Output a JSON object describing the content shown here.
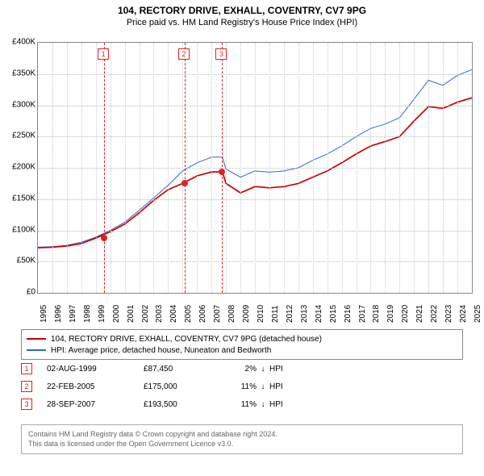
{
  "title": "104, RECTORY DRIVE, EXHALL, COVENTRY, CV7 9PG",
  "subtitle": "Price paid vs. HM Land Registry's House Price Index (HPI)",
  "chart": {
    "type": "line",
    "ylim": [
      0,
      400000
    ],
    "ytick_step": 50000,
    "yticks": [
      "£0",
      "£50K",
      "£100K",
      "£150K",
      "£200K",
      "£250K",
      "£300K",
      "£350K",
      "£400K"
    ],
    "xlim": [
      1995,
      2025
    ],
    "xticks": [
      "1995",
      "1996",
      "1997",
      "1998",
      "1999",
      "2000",
      "2001",
      "2002",
      "2003",
      "2004",
      "2005",
      "2006",
      "2007",
      "2008",
      "2009",
      "2010",
      "2011",
      "2012",
      "2013",
      "2014",
      "2015",
      "2016",
      "2017",
      "2018",
      "2019",
      "2020",
      "2021",
      "2022",
      "2023",
      "2024",
      "2025"
    ],
    "background_color": "#ffffff",
    "grid_color": "#bbbbbb",
    "series": {
      "property": {
        "label": "104, RECTORY DRIVE, EXHALL, COVENTRY, CV7 9PG (detached house)",
        "color": "#cc0000",
        "width": 1.7,
        "years": [
          1995,
          1996,
          1997,
          1998,
          1999,
          2000,
          2001,
          2002,
          2003,
          2004,
          2005,
          2006,
          2007,
          2007.75,
          2008,
          2009,
          2010,
          2011,
          2012,
          2013,
          2014,
          2015,
          2016,
          2017,
          2018,
          2019,
          2020,
          2021,
          2022,
          2023,
          2024,
          2025
        ],
        "values": [
          72000,
          73000,
          75000,
          79000,
          87450,
          98000,
          110000,
          128000,
          148000,
          165000,
          175000,
          187000,
          193500,
          193500,
          175000,
          160000,
          170000,
          168000,
          170000,
          175000,
          185000,
          195000,
          208000,
          222000,
          235000,
          242000,
          250000,
          275000,
          298000,
          295000,
          305000,
          312000
        ]
      },
      "hpi": {
        "label": "HPI: Average price, detached house, Nuneaton and Bedworth",
        "color": "#3366cc",
        "width": 1.0,
        "years": [
          1995,
          1996,
          1997,
          1998,
          1999,
          2000,
          2001,
          2002,
          2003,
          2004,
          2005,
          2006,
          2007,
          2007.75,
          2008,
          2009,
          2010,
          2011,
          2012,
          2013,
          2014,
          2015,
          2016,
          2017,
          2018,
          2019,
          2020,
          2021,
          2022,
          2023,
          2024,
          2025
        ],
        "values": [
          73000,
          74000,
          76000,
          81000,
          89000,
          100000,
          113000,
          132000,
          152000,
          172000,
          195000,
          208000,
          217000,
          217000,
          198000,
          185000,
          195000,
          193000,
          195000,
          200000,
          212000,
          222000,
          235000,
          250000,
          263000,
          270000,
          280000,
          310000,
          340000,
          332000,
          348000,
          357000
        ]
      }
    },
    "markers": [
      {
        "n": "1",
        "year": 1999.58,
        "value": 87450
      },
      {
        "n": "2",
        "year": 2005.14,
        "value": 175000
      },
      {
        "n": "3",
        "year": 2007.74,
        "value": 193500
      }
    ]
  },
  "sales": [
    {
      "n": "1",
      "date": "02-AUG-1999",
      "price": "£87,450",
      "pct": "2%",
      "dir": "↓",
      "suffix": "HPI"
    },
    {
      "n": "2",
      "date": "22-FEB-2005",
      "price": "£175,000",
      "pct": "11%",
      "dir": "↓",
      "suffix": "HPI"
    },
    {
      "n": "3",
      "date": "28-SEP-2007",
      "price": "£193,500",
      "pct": "11%",
      "dir": "↓",
      "suffix": "HPI"
    }
  ],
  "footer": {
    "line1": "Contains HM Land Registry data © Crown copyright and database right 2024.",
    "line2": "This data is licensed under the Open Government Licence v3.0."
  }
}
